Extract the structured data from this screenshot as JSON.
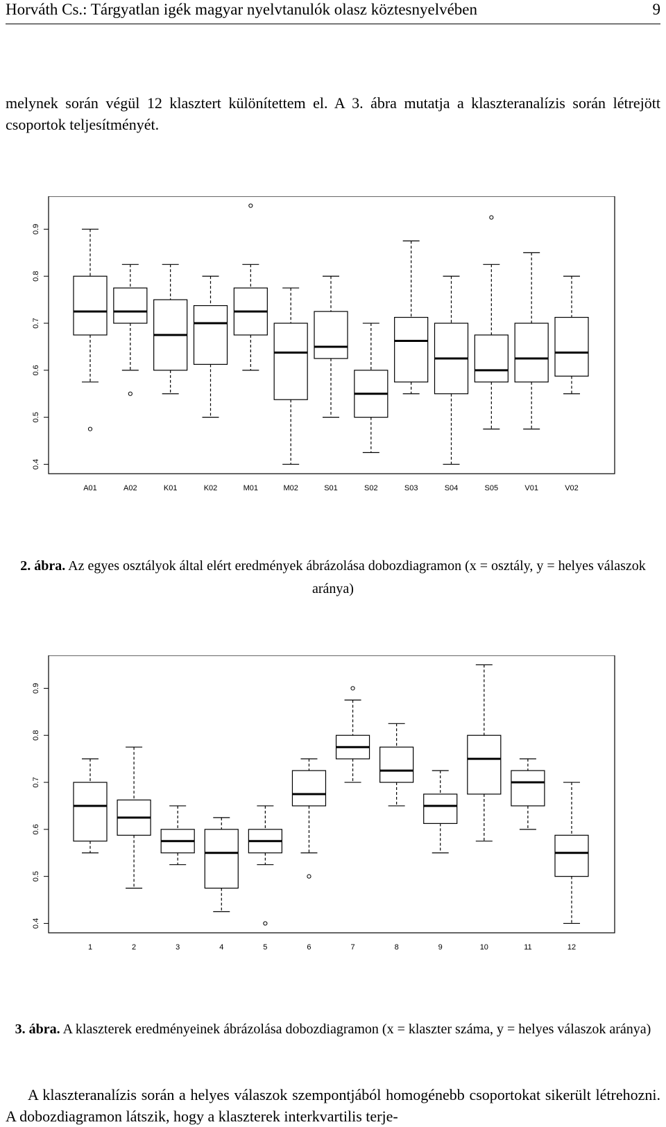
{
  "header": {
    "title": "Horváth Cs.: Tárgyatlan igék magyar nyelvtanulók olasz köztesnyelvében",
    "page_number": "9"
  },
  "intro_paragraph": "melynek során végül 12 klasztert különítettem el. A 3. ábra mutatja a klaszteranalízis során létrejött csoportok teljesítményét.",
  "caption2": {
    "label": "2. ábra.",
    "text": "Az egyes osztályok által elért eredmények ábrázolása dobozdiagramon (x = osztály, y = helyes válaszok aránya)"
  },
  "caption3": {
    "label": "3. ábra.",
    "text": "A klaszterek eredményeinek ábrázolása dobozdiagramon (x =  klaszter száma, y = helyes válaszok aránya)"
  },
  "bottom_paragraph": "A klaszteranalízis során a helyes válaszok szempontjából homogénebb csoportokat sikerült létrehozni. A dobozdiagramon látszik, hogy a klaszterek interkvartilis terje-",
  "chart_data": [
    {
      "type": "box",
      "ylim": [
        0.38,
        0.97
      ],
      "yticks": [
        "0.4",
        "0.5",
        "0.6",
        "0.7",
        "0.8",
        "0.9"
      ],
      "grid": false,
      "categories": [
        "A01",
        "A02",
        "K01",
        "K02",
        "M01",
        "M02",
        "S01",
        "S02",
        "S03",
        "S04",
        "S05",
        "V01",
        "V02"
      ],
      "boxes": [
        {
          "whisker_low": 0.575,
          "q1": 0.675,
          "median": 0.725,
          "q3": 0.8,
          "whisker_high": 0.9,
          "outliers": [
            0.475
          ]
        },
        {
          "whisker_low": 0.6,
          "q1": 0.7,
          "median": 0.725,
          "q3": 0.775,
          "whisker_high": 0.825,
          "outliers": [
            0.55
          ]
        },
        {
          "whisker_low": 0.55,
          "q1": 0.6,
          "median": 0.675,
          "q3": 0.75,
          "whisker_high": 0.825,
          "outliers": []
        },
        {
          "whisker_low": 0.5,
          "q1": 0.6125,
          "median": 0.7,
          "q3": 0.7375,
          "whisker_high": 0.8,
          "outliers": []
        },
        {
          "whisker_low": 0.6,
          "q1": 0.675,
          "median": 0.725,
          "q3": 0.775,
          "whisker_high": 0.825,
          "outliers": [
            0.95
          ]
        },
        {
          "whisker_low": 0.4,
          "q1": 0.5375,
          "median": 0.6375,
          "q3": 0.7,
          "whisker_high": 0.775,
          "outliers": []
        },
        {
          "whisker_low": 0.5,
          "q1": 0.625,
          "median": 0.65,
          "q3": 0.725,
          "whisker_high": 0.8,
          "outliers": []
        },
        {
          "whisker_low": 0.425,
          "q1": 0.5,
          "median": 0.55,
          "q3": 0.6,
          "whisker_high": 0.7,
          "outliers": []
        },
        {
          "whisker_low": 0.55,
          "q1": 0.575,
          "median": 0.6625,
          "q3": 0.7125,
          "whisker_high": 0.875,
          "outliers": []
        },
        {
          "whisker_low": 0.4,
          "q1": 0.55,
          "median": 0.625,
          "q3": 0.7,
          "whisker_high": 0.8,
          "outliers": []
        },
        {
          "whisker_low": 0.475,
          "q1": 0.575,
          "median": 0.6,
          "q3": 0.675,
          "whisker_high": 0.825,
          "outliers": [
            0.925
          ]
        },
        {
          "whisker_low": 0.475,
          "q1": 0.575,
          "median": 0.625,
          "q3": 0.7,
          "whisker_high": 0.85,
          "outliers": []
        },
        {
          "whisker_low": 0.55,
          "q1": 0.5875,
          "median": 0.6375,
          "q3": 0.7125,
          "whisker_high": 0.8,
          "outliers": []
        }
      ]
    },
    {
      "type": "box",
      "ylim": [
        0.38,
        0.97
      ],
      "yticks": [
        "0.4",
        "0.5",
        "0.6",
        "0.7",
        "0.8",
        "0.9"
      ],
      "grid": false,
      "categories": [
        "1",
        "2",
        "3",
        "4",
        "5",
        "6",
        "7",
        "8",
        "9",
        "10",
        "11",
        "12"
      ],
      "boxes": [
        {
          "whisker_low": 0.55,
          "q1": 0.575,
          "median": 0.65,
          "q3": 0.7,
          "whisker_high": 0.75,
          "outliers": []
        },
        {
          "whisker_low": 0.475,
          "q1": 0.5875,
          "median": 0.625,
          "q3": 0.6625,
          "whisker_high": 0.775,
          "outliers": []
        },
        {
          "whisker_low": 0.525,
          "q1": 0.55,
          "median": 0.575,
          "q3": 0.6,
          "whisker_high": 0.65,
          "outliers": []
        },
        {
          "whisker_low": 0.425,
          "q1": 0.475,
          "median": 0.55,
          "q3": 0.6,
          "whisker_high": 0.625,
          "outliers": []
        },
        {
          "whisker_low": 0.525,
          "q1": 0.55,
          "median": 0.575,
          "q3": 0.6,
          "whisker_high": 0.65,
          "outliers": [
            0.4
          ]
        },
        {
          "whisker_low": 0.55,
          "q1": 0.65,
          "median": 0.675,
          "q3": 0.725,
          "whisker_high": 0.75,
          "outliers": [
            0.5
          ]
        },
        {
          "whisker_low": 0.7,
          "q1": 0.75,
          "median": 0.775,
          "q3": 0.8,
          "whisker_high": 0.875,
          "outliers": [
            0.9
          ]
        },
        {
          "whisker_low": 0.65,
          "q1": 0.7,
          "median": 0.725,
          "q3": 0.775,
          "whisker_high": 0.825,
          "outliers": []
        },
        {
          "whisker_low": 0.55,
          "q1": 0.6125,
          "median": 0.65,
          "q3": 0.675,
          "whisker_high": 0.725,
          "outliers": []
        },
        {
          "whisker_low": 0.575,
          "q1": 0.675,
          "median": 0.75,
          "q3": 0.8,
          "whisker_high": 0.95,
          "outliers": []
        },
        {
          "whisker_low": 0.6,
          "q1": 0.65,
          "median": 0.7,
          "q3": 0.725,
          "whisker_high": 0.75,
          "outliers": []
        },
        {
          "whisker_low": 0.4,
          "q1": 0.5,
          "median": 0.55,
          "q3": 0.5875,
          "whisker_high": 0.7,
          "outliers": []
        }
      ]
    }
  ]
}
